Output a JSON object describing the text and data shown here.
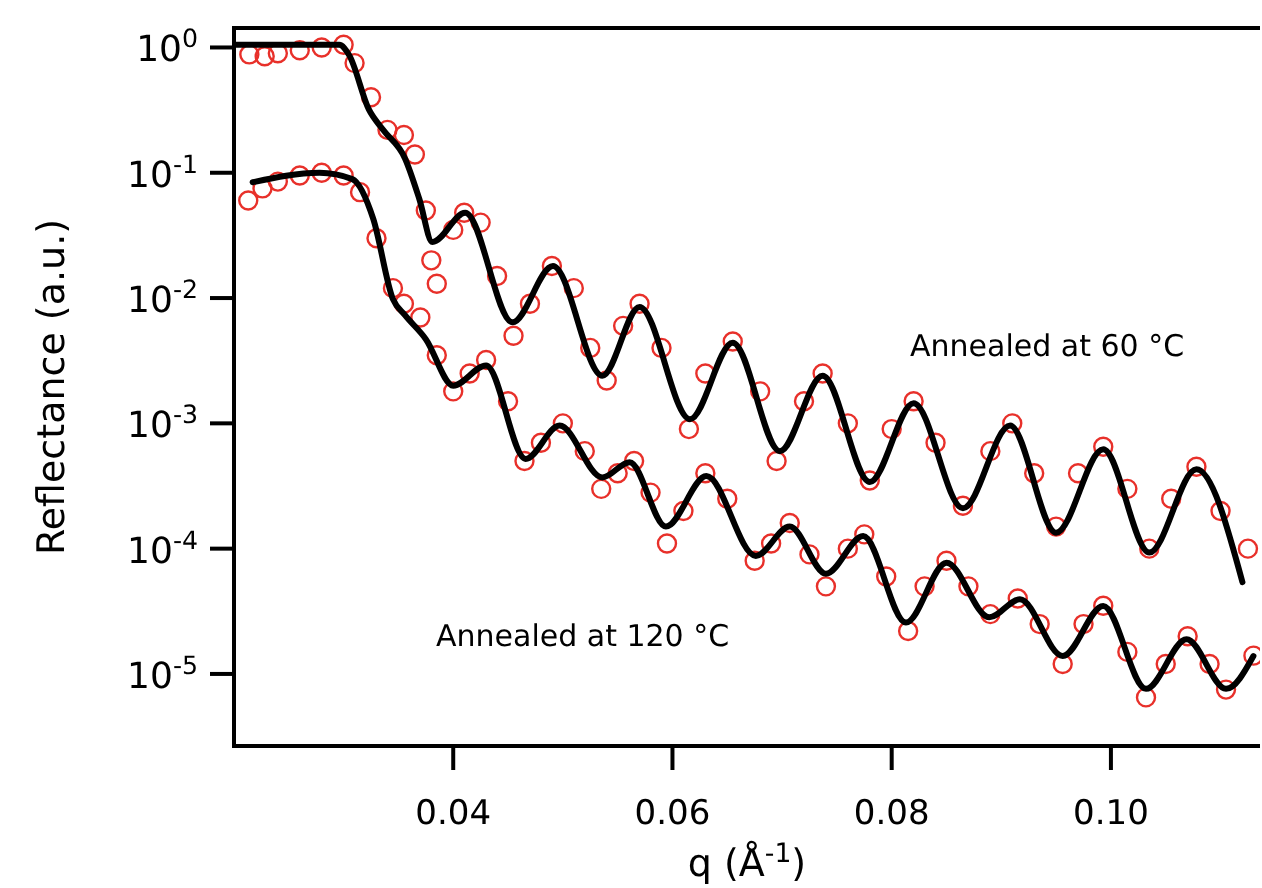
{
  "chart_data": {
    "type": "scatter",
    "xlabel": "q (Å$^{-1}$)",
    "ylabel": "Reflectance (a.u.)",
    "log": "y",
    "xlim": [
      0.02,
      0.1136
    ],
    "ylim": [
      2.66e-06,
      1.43
    ],
    "xticks": [
      0.04,
      0.06,
      0.08,
      {
        "value": 0.1,
        "label": "0.10"
      }
    ],
    "yticks": [
      {
        "value": 1,
        "label": "10$^{0}$"
      },
      {
        "value": 0.1,
        "label": "10$^{-1}$"
      },
      {
        "value": 0.01,
        "label": "10$^{-2}$"
      },
      {
        "value": 0.001,
        "label": "10$^{-3}$"
      },
      {
        "value": 0.0001,
        "label": "10$^{-4}$"
      },
      {
        "value": 1e-05,
        "label": "10$^{-5}$"
      }
    ],
    "grid": false,
    "marker": "circle",
    "annotations": [
      "Annealed at 60 °C",
      "Annealed at 120 °C"
    ],
    "series": [
      {
        "color": "#e8302a",
        "x": [
          0.0214,
          0.0228,
          0.024,
          0.026,
          0.028,
          0.03,
          0.031,
          0.0325,
          0.034,
          0.0355,
          0.0365,
          0.0375,
          0.038,
          0.0385,
          0.04,
          0.041,
          0.0425,
          0.044,
          0.0455,
          0.047,
          0.049,
          0.051,
          0.0525,
          0.054,
          0.0555,
          0.057,
          0.059,
          0.0615,
          0.063,
          0.0655,
          0.068,
          0.0695,
          0.072,
          0.0737,
          0.076,
          0.078,
          0.08,
          0.082,
          0.084,
          0.0865,
          0.089,
          0.091,
          0.093,
          0.095,
          0.097,
          0.0993,
          0.1015,
          0.1035,
          0.1055,
          0.1078,
          0.11,
          0.1125
        ],
        "values": [
          0.88,
          0.85,
          0.9,
          0.95,
          1.0,
          1.05,
          0.75,
          0.4,
          0.22,
          0.2,
          0.14,
          0.05,
          0.02,
          0.013,
          0.035,
          0.048,
          0.04,
          0.015,
          0.005,
          0.009,
          0.018,
          0.012,
          0.004,
          0.0022,
          0.006,
          0.009,
          0.004,
          0.0009,
          0.0025,
          0.0045,
          0.0018,
          0.0005,
          0.0015,
          0.0025,
          0.001,
          0.00035,
          0.0009,
          0.0015,
          0.0007,
          0.00022,
          0.0006,
          0.001,
          0.0004,
          0.00015,
          0.0004,
          0.00065,
          0.0003,
          0.0001,
          0.00025,
          0.00045,
          0.0002,
          0.0001
        ]
      },
      {
        "color": "#e8302a",
        "x": [
          0.0213,
          0.0226,
          0.024,
          0.026,
          0.028,
          0.03,
          0.0315,
          0.033,
          0.0345,
          0.0355,
          0.037,
          0.0385,
          0.04,
          0.0415,
          0.043,
          0.045,
          0.0465,
          0.048,
          0.05,
          0.052,
          0.0535,
          0.055,
          0.0565,
          0.058,
          0.0595,
          0.061,
          0.063,
          0.065,
          0.0675,
          0.069,
          0.0707,
          0.0725,
          0.074,
          0.076,
          0.0775,
          0.0795,
          0.0815,
          0.083,
          0.085,
          0.087,
          0.089,
          0.0915,
          0.0935,
          0.0956,
          0.0975,
          0.0993,
          0.1015,
          0.1032,
          0.105,
          0.107,
          0.109,
          0.1105,
          0.113
        ],
        "values": [
          0.06,
          0.075,
          0.085,
          0.095,
          0.1,
          0.095,
          0.07,
          0.03,
          0.012,
          0.009,
          0.007,
          0.0035,
          0.0018,
          0.0025,
          0.0032,
          0.0015,
          0.0005,
          0.0007,
          0.001,
          0.0006,
          0.0003,
          0.0004,
          0.0005,
          0.00028,
          0.00011,
          0.0002,
          0.0004,
          0.00025,
          8e-05,
          0.00011,
          0.00016,
          9e-05,
          5e-05,
          0.0001,
          0.00013,
          6e-05,
          2.2e-05,
          5e-05,
          8e-05,
          5e-05,
          3e-05,
          4e-05,
          2.5e-05,
          1.2e-05,
          2.5e-05,
          3.5e-05,
          1.5e-05,
          6.5e-06,
          1.2e-05,
          2e-05,
          1.2e-05,
          7.5e-06,
          1.4e-05
        ]
      },
      {
        "type": "line",
        "color": "#000000",
        "marker": "none",
        "x": [
          0.02,
          0.0296,
          0.0305,
          0.0323,
          0.0336,
          0.0356,
          0.0369,
          0.0381,
          0.0411,
          0.0454,
          0.0491,
          0.0536,
          0.057,
          0.0616,
          0.0655,
          0.0698,
          0.0737,
          0.078,
          0.082,
          0.0865,
          0.0908,
          0.095,
          0.0993,
          0.1035,
          0.1078,
          0.112
        ],
        "values": [
          1.05,
          1.05,
          0.87,
          0.32,
          0.22,
          0.13,
          0.062,
          0.028,
          0.048,
          0.0064,
          0.018,
          0.0024,
          0.0085,
          0.00108,
          0.0044,
          0.0006,
          0.0024,
          0.00034,
          0.00145,
          0.00021,
          0.00096,
          0.000134,
          0.00062,
          9.3e-05,
          0.00043,
          5.4e-05
        ]
      },
      {
        "type": "line",
        "color": "#000000",
        "marker": "none",
        "x": [
          0.0217,
          0.0278,
          0.0308,
          0.0327,
          0.0345,
          0.0356,
          0.0375,
          0.04,
          0.043,
          0.0466,
          0.0497,
          0.0536,
          0.0561,
          0.0594,
          0.0631,
          0.0676,
          0.0707,
          0.074,
          0.0774,
          0.0813,
          0.085,
          0.0889,
          0.0917,
          0.0956,
          0.0993,
          0.1032,
          0.1069,
          0.1105,
          0.113
        ],
        "values": [
          0.084,
          0.1,
          0.089,
          0.043,
          0.0098,
          0.0073,
          0.0047,
          0.002,
          0.0029,
          0.00052,
          0.00096,
          0.00037,
          0.00049,
          0.00015,
          0.00038,
          8.75e-05,
          0.00015,
          6.3e-05,
          0.000126,
          2.57e-05,
          7.73e-05,
          2.83e-05,
          3.94e-05,
          1.39e-05,
          3.49e-05,
          7.6e-06,
          1.89e-05,
          7.6e-06,
          1.39e-05
        ]
      }
    ]
  }
}
